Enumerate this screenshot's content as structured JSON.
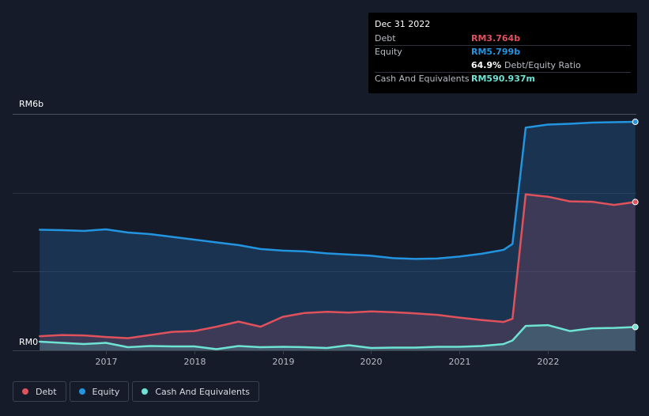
{
  "chart_data": {
    "type": "area",
    "x_range": [
      2016.2,
      2022.99
    ],
    "ylim": [
      0,
      6
    ],
    "y_unit": "RM billions",
    "y_tick_labels": [
      "RM0",
      "RM6b"
    ],
    "x_tick_labels": [
      "2017",
      "2018",
      "2019",
      "2020",
      "2021",
      "2022"
    ],
    "x_ticks": [
      2017,
      2018,
      2019,
      2020,
      2021,
      2022
    ],
    "grid": true,
    "legend_position": "bottom-left",
    "series": [
      {
        "name": "Equity",
        "color": "#2394df",
        "points": [
          [
            2016.25,
            3.06
          ],
          [
            2016.5,
            3.05
          ],
          [
            2016.75,
            3.03
          ],
          [
            2017.0,
            3.07
          ],
          [
            2017.25,
            2.99
          ],
          [
            2017.5,
            2.95
          ],
          [
            2017.75,
            2.88
          ],
          [
            2018.0,
            2.81
          ],
          [
            2018.25,
            2.74
          ],
          [
            2018.5,
            2.67
          ],
          [
            2018.75,
            2.57
          ],
          [
            2019.0,
            2.53
          ],
          [
            2019.25,
            2.51
          ],
          [
            2019.5,
            2.46
          ],
          [
            2019.75,
            2.43
          ],
          [
            2020.0,
            2.4
          ],
          [
            2020.25,
            2.34
          ],
          [
            2020.5,
            2.32
          ],
          [
            2020.75,
            2.33
          ],
          [
            2021.0,
            2.38
          ],
          [
            2021.25,
            2.45
          ],
          [
            2021.5,
            2.55
          ],
          [
            2021.6,
            2.7
          ],
          [
            2021.75,
            5.65
          ],
          [
            2022.0,
            5.73
          ],
          [
            2022.25,
            5.75
          ],
          [
            2022.5,
            5.78
          ],
          [
            2022.75,
            5.79
          ],
          [
            2022.99,
            5.799
          ]
        ]
      },
      {
        "name": "Debt",
        "color": "#e0525b",
        "points": [
          [
            2016.25,
            0.36
          ],
          [
            2016.5,
            0.39
          ],
          [
            2016.75,
            0.38
          ],
          [
            2017.0,
            0.34
          ],
          [
            2017.25,
            0.31
          ],
          [
            2017.5,
            0.39
          ],
          [
            2017.75,
            0.47
          ],
          [
            2018.0,
            0.49
          ],
          [
            2018.25,
            0.6
          ],
          [
            2018.5,
            0.73
          ],
          [
            2018.75,
            0.6
          ],
          [
            2019.0,
            0.85
          ],
          [
            2019.25,
            0.95
          ],
          [
            2019.5,
            0.98
          ],
          [
            2019.75,
            0.96
          ],
          [
            2020.0,
            0.99
          ],
          [
            2020.25,
            0.97
          ],
          [
            2020.5,
            0.94
          ],
          [
            2020.75,
            0.9
          ],
          [
            2021.0,
            0.83
          ],
          [
            2021.25,
            0.77
          ],
          [
            2021.5,
            0.72
          ],
          [
            2021.6,
            0.8
          ],
          [
            2021.75,
            3.96
          ],
          [
            2022.0,
            3.9
          ],
          [
            2022.25,
            3.78
          ],
          [
            2022.5,
            3.77
          ],
          [
            2022.75,
            3.69
          ],
          [
            2022.99,
            3.764
          ]
        ]
      },
      {
        "name": "Cash And Equivalents",
        "color": "#6ee3d3",
        "points": [
          [
            2016.25,
            0.22
          ],
          [
            2016.5,
            0.19
          ],
          [
            2016.75,
            0.16
          ],
          [
            2017.0,
            0.19
          ],
          [
            2017.25,
            0.08
          ],
          [
            2017.5,
            0.11
          ],
          [
            2017.75,
            0.1
          ],
          [
            2018.0,
            0.1
          ],
          [
            2018.25,
            0.03
          ],
          [
            2018.5,
            0.11
          ],
          [
            2018.75,
            0.08
          ],
          [
            2019.0,
            0.09
          ],
          [
            2019.25,
            0.08
          ],
          [
            2019.5,
            0.06
          ],
          [
            2019.75,
            0.13
          ],
          [
            2020.0,
            0.06
          ],
          [
            2020.25,
            0.07
          ],
          [
            2020.5,
            0.07
          ],
          [
            2020.75,
            0.09
          ],
          [
            2021.0,
            0.09
          ],
          [
            2021.25,
            0.11
          ],
          [
            2021.5,
            0.16
          ],
          [
            2021.6,
            0.25
          ],
          [
            2021.75,
            0.62
          ],
          [
            2022.0,
            0.64
          ],
          [
            2022.25,
            0.49
          ],
          [
            2022.5,
            0.56
          ],
          [
            2022.75,
            0.57
          ],
          [
            2022.99,
            0.591
          ]
        ]
      }
    ]
  },
  "tooltip": {
    "date": "Dec 31 2022",
    "debt_label": "Debt",
    "debt_value": "RM3.764b",
    "equity_label": "Equity",
    "equity_value": "RM5.799b",
    "ratio_value": "64.9%",
    "ratio_label": "Debt/Equity Ratio",
    "cash_label": "Cash And Equivalents",
    "cash_value": "RM590.937m",
    "debt_color": "#e0525b",
    "equity_color": "#2394df",
    "cash_color": "#6ee3d3"
  },
  "legend": {
    "items": [
      {
        "label": "Debt",
        "color": "#e0525b"
      },
      {
        "label": "Equity",
        "color": "#2394df"
      },
      {
        "label": "Cash And Equivalents",
        "color": "#6ee3d3"
      }
    ]
  }
}
